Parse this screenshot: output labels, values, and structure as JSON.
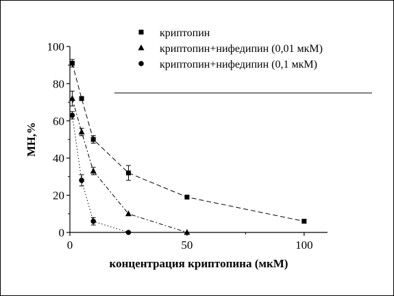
{
  "chart_data": {
    "type": "line",
    "xlabel": "концентрация криптопина (мкМ)",
    "ylabel": "MH,%",
    "xlim": [
      0,
      110
    ],
    "ylim": [
      0,
      100
    ],
    "x_ticks": [
      0,
      50,
      100
    ],
    "y_ticks": [
      0,
      20,
      40,
      60,
      80,
      100
    ],
    "grid": false,
    "legend_position": "top-right",
    "reference_line": {
      "y": 75,
      "x_from": 19,
      "x_to": 129
    },
    "series": [
      {
        "name": "криптопин",
        "marker": "square",
        "line_style": "dash",
        "points": [
          {
            "x": 1,
            "y": 91,
            "err": 2
          },
          {
            "x": 5,
            "y": 72,
            "err": 1
          },
          {
            "x": 10,
            "y": 50,
            "err": 2
          },
          {
            "x": 25,
            "y": 32,
            "err": 4
          },
          {
            "x": 50,
            "y": 19,
            "err": 0
          },
          {
            "x": 100,
            "y": 6,
            "err": 1
          }
        ]
      },
      {
        "name": "криптопин+нифедипин (0,01 мкМ)",
        "marker": "triangle",
        "line_style": "dashdot",
        "points": [
          {
            "x": 1,
            "y": 72,
            "err": 4
          },
          {
            "x": 5,
            "y": 54,
            "err": 2
          },
          {
            "x": 10,
            "y": 33,
            "err": 2
          },
          {
            "x": 25,
            "y": 10,
            "err": 0
          },
          {
            "x": 50,
            "y": 0,
            "err": 0
          }
        ]
      },
      {
        "name": "криптопин+нифедипин (0,1 мкМ)",
        "marker": "circle",
        "line_style": "dot",
        "points": [
          {
            "x": 1,
            "y": 63,
            "err": 2
          },
          {
            "x": 5,
            "y": 28,
            "err": 3
          },
          {
            "x": 10,
            "y": 6,
            "err": 2
          },
          {
            "x": 25,
            "y": 0,
            "err": 0
          }
        ]
      }
    ]
  }
}
